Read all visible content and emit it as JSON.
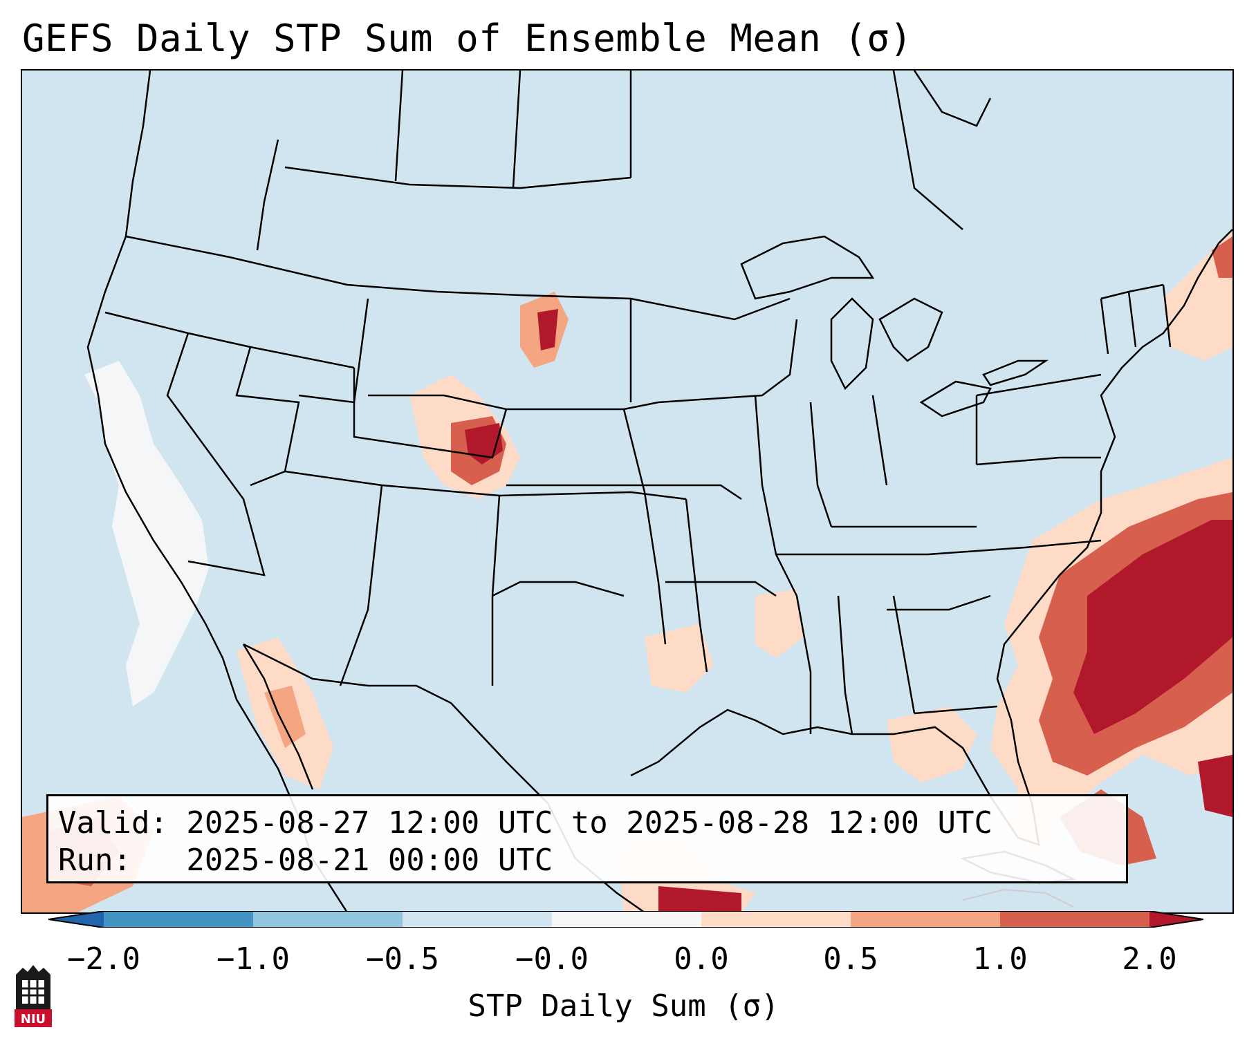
{
  "title": "GEFS Daily STP Sum of Ensemble Mean (σ)",
  "info": {
    "valid": "Valid: 2025-08-27 12:00 UTC to 2025-08-28 12:00 UTC",
    "run": "Run:   2025-08-21 00:00 UTC"
  },
  "colorbar": {
    "label": "STP Daily Sum (σ)",
    "ticks": [
      "−2.0",
      "−1.0",
      "−0.5",
      "−0.0",
      "0.0",
      "0.5",
      "1.0",
      "2.0"
    ],
    "colors": [
      "#2166ac",
      "#4393c3",
      "#92c5de",
      "#d1e5f0",
      "#f7f7f7",
      "#fddbc7",
      "#f4a582",
      "#d6604d",
      "#b2182b"
    ]
  },
  "logo": {
    "text": "NIU",
    "name": "niu-logo"
  }
}
